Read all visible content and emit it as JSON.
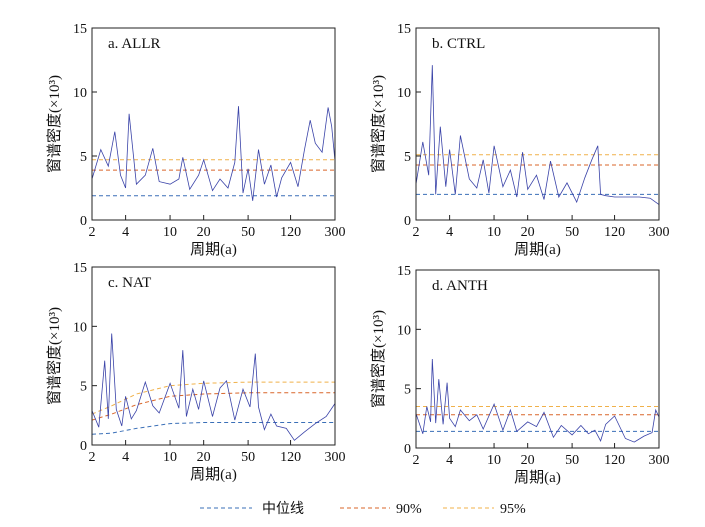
{
  "legend": {
    "items": [
      {
        "label": "中位线",
        "color": "#3a6fb7"
      },
      {
        "label": "90%",
        "color": "#d9662a"
      },
      {
        "label": "95%",
        "color": "#f0b14a"
      }
    ]
  },
  "colors": {
    "spectrum": "#3a43a8"
  },
  "chart_data": [
    {
      "type": "line",
      "title": "a. ALLR",
      "xlabel": "周期(a)",
      "ylabel": "窗谱密度(×10³)",
      "x_scale": "log",
      "xlim": [
        2,
        300
      ],
      "ylim": [
        0,
        15
      ],
      "xticks": [
        2,
        4,
        10,
        20,
        50,
        120,
        300
      ],
      "yticks": [
        0,
        5,
        10,
        15
      ],
      "series": [
        {
          "name": "中位线",
          "x": [
            2,
            3,
            5,
            10,
            20,
            50,
            120,
            300
          ],
          "y": [
            1.9,
            1.9,
            1.9,
            1.9,
            1.9,
            1.9,
            1.9,
            1.9
          ]
        },
        {
          "name": "90%",
          "x": [
            2,
            3,
            5,
            10,
            20,
            50,
            120,
            300
          ],
          "y": [
            3.9,
            3.9,
            3.9,
            3.9,
            3.9,
            3.9,
            3.9,
            3.9
          ]
        },
        {
          "name": "95%",
          "x": [
            2,
            3,
            5,
            10,
            20,
            50,
            120,
            300
          ],
          "y": [
            4.7,
            4.7,
            4.7,
            4.7,
            4.7,
            4.7,
            4.7,
            4.7
          ]
        },
        {
          "x": [
            2,
            2.4,
            2.8,
            3.2,
            3.6,
            4,
            4.3,
            5,
            6,
            7,
            8,
            10,
            12,
            13,
            15,
            18,
            20,
            24,
            28,
            33,
            38,
            41,
            45,
            50,
            55,
            62,
            70,
            80,
            90,
            100,
            120,
            140,
            160,
            180,
            200,
            230,
            260,
            280,
            300
          ],
          "y": [
            3.2,
            5.5,
            4.2,
            6.9,
            3.5,
            2.5,
            8.3,
            2.8,
            3.5,
            5.6,
            3.0,
            2.8,
            3.2,
            4.9,
            2.4,
            3.5,
            4.7,
            2.3,
            3.2,
            2.5,
            4.5,
            8.9,
            2.1,
            4.0,
            1.5,
            5.5,
            2.8,
            4.3,
            1.8,
            3.3,
            4.5,
            2.6,
            5.5,
            7.8,
            6.0,
            5.3,
            8.8,
            7.3,
            4.6
          ]
        }
      ]
    },
    {
      "type": "line",
      "title": "b. CTRL",
      "xlabel": "周期(a)",
      "ylabel": "窗谱密度(×10³)",
      "x_scale": "log",
      "xlim": [
        2,
        300
      ],
      "ylim": [
        0,
        15
      ],
      "xticks": [
        2,
        4,
        10,
        20,
        50,
        120,
        300
      ],
      "yticks": [
        0,
        5,
        10,
        15
      ],
      "series": [
        {
          "name": "中位线",
          "x": [
            2,
            3,
            5,
            10,
            20,
            50,
            120,
            300
          ],
          "y": [
            2.0,
            2.0,
            2.0,
            2.0,
            2.0,
            2.0,
            2.0,
            2.0
          ]
        },
        {
          "name": "90%",
          "x": [
            2,
            3,
            5,
            10,
            20,
            50,
            120,
            300
          ],
          "y": [
            4.3,
            4.3,
            4.3,
            4.3,
            4.3,
            4.3,
            4.3,
            4.3
          ]
        },
        {
          "name": "95%",
          "x": [
            2,
            3,
            5,
            10,
            20,
            50,
            120,
            300
          ],
          "y": [
            5.1,
            5.1,
            5.1,
            5.1,
            5.1,
            5.1,
            5.1,
            5.1
          ]
        },
        {
          "x": [
            2,
            2.3,
            2.6,
            2.8,
            3.0,
            3.3,
            3.7,
            4,
            4.5,
            5,
            6,
            7,
            8,
            9,
            10,
            12,
            14,
            16,
            18,
            20,
            24,
            28,
            32,
            38,
            45,
            55,
            65,
            75,
            85,
            90,
            100,
            120,
            150,
            200,
            250,
            300
          ],
          "y": [
            2.8,
            6.1,
            3.5,
            12.1,
            2.0,
            7.3,
            2.6,
            5.5,
            2.0,
            6.6,
            3.2,
            2.5,
            4.7,
            2.1,
            5.8,
            2.6,
            3.9,
            1.8,
            5.3,
            2.4,
            3.5,
            1.6,
            4.6,
            1.8,
            2.9,
            1.4,
            3.3,
            4.7,
            5.8,
            2.0,
            1.9,
            1.8,
            1.8,
            1.8,
            1.7,
            1.2
          ]
        }
      ]
    },
    {
      "type": "line",
      "title": "c. NAT",
      "xlabel": "周期(a)",
      "ylabel": "窗谱密度(×10³)",
      "x_scale": "log",
      "xlim": [
        2,
        300
      ],
      "ylim": [
        0,
        15
      ],
      "xticks": [
        2,
        4,
        10,
        20,
        50,
        120,
        300
      ],
      "yticks": [
        0,
        5,
        10,
        15
      ],
      "series": [
        {
          "name": "中位线",
          "x": [
            2,
            3,
            5,
            10,
            20,
            50,
            120,
            300
          ],
          "y": [
            0.9,
            1.0,
            1.4,
            1.8,
            1.9,
            1.9,
            1.9,
            1.9
          ]
        },
        {
          "name": "90%",
          "x": [
            2,
            3,
            5,
            10,
            20,
            50,
            120,
            300
          ],
          "y": [
            2.1,
            2.6,
            3.4,
            4.1,
            4.3,
            4.4,
            4.4,
            4.4
          ]
        },
        {
          "name": "95%",
          "x": [
            2,
            3,
            5,
            10,
            20,
            50,
            120,
            300
          ],
          "y": [
            2.6,
            3.3,
            4.3,
            5.0,
            5.2,
            5.3,
            5.3,
            5.3
          ]
        },
        {
          "x": [
            2,
            2.3,
            2.6,
            2.8,
            3.0,
            3.3,
            3.7,
            4,
            4.5,
            5,
            6,
            7,
            8,
            10,
            12,
            13,
            14,
            16,
            18,
            20,
            24,
            28,
            32,
            38,
            45,
            52,
            58,
            62,
            70,
            80,
            90,
            110,
            130,
            160,
            200,
            250,
            300
          ],
          "y": [
            2.9,
            1.5,
            7.1,
            2.2,
            9.4,
            3.0,
            1.6,
            4.1,
            2.2,
            2.9,
            5.3,
            3.3,
            2.7,
            5.2,
            3.1,
            8.0,
            2.4,
            4.7,
            3.0,
            5.4,
            2.4,
            4.8,
            5.4,
            2.1,
            4.7,
            3.2,
            7.7,
            3.2,
            1.3,
            2.6,
            1.6,
            1.4,
            0.4,
            1.1,
            1.8,
            2.4,
            3.5
          ]
        }
      ]
    },
    {
      "type": "line",
      "title": "d. ANTH",
      "xlabel": "周期(a)",
      "ylabel": "窗谱密度(×10³)",
      "x_scale": "log",
      "xlim": [
        2,
        300
      ],
      "ylim": [
        0,
        15
      ],
      "xticks": [
        2,
        4,
        10,
        20,
        50,
        120,
        300
      ],
      "yticks": [
        0,
        5,
        10,
        15
      ],
      "series": [
        {
          "name": "中位线",
          "x": [
            2,
            3,
            5,
            10,
            20,
            50,
            120,
            300
          ],
          "y": [
            1.4,
            1.4,
            1.4,
            1.4,
            1.4,
            1.4,
            1.4,
            1.4
          ]
        },
        {
          "name": "90%",
          "x": [
            2,
            3,
            5,
            10,
            20,
            50,
            120,
            300
          ],
          "y": [
            2.8,
            2.8,
            2.8,
            2.8,
            2.8,
            2.8,
            2.8,
            2.8
          ]
        },
        {
          "name": "95%",
          "x": [
            2,
            3,
            5,
            10,
            20,
            50,
            120,
            300
          ],
          "y": [
            3.5,
            3.5,
            3.5,
            3.5,
            3.5,
            3.5,
            3.5,
            3.5
          ]
        },
        {
          "x": [
            2,
            2.3,
            2.5,
            2.7,
            2.8,
            3.0,
            3.2,
            3.5,
            3.8,
            4,
            4.5,
            5,
            6,
            7,
            8,
            10,
            12,
            14,
            16,
            20,
            24,
            28,
            34,
            40,
            50,
            60,
            70,
            80,
            90,
            100,
            120,
            150,
            180,
            220,
            260,
            280,
            300
          ],
          "y": [
            2.9,
            1.2,
            3.5,
            2.2,
            7.5,
            2.1,
            5.8,
            2.0,
            5.5,
            2.5,
            1.8,
            3.2,
            2.3,
            2.8,
            1.6,
            3.7,
            1.5,
            3.2,
            1.4,
            2.2,
            1.8,
            3.0,
            0.9,
            1.9,
            1.1,
            1.9,
            1.2,
            1.5,
            0.6,
            2.0,
            2.7,
            0.8,
            0.5,
            1.0,
            1.3,
            3.2,
            2.6
          ]
        }
      ]
    }
  ]
}
